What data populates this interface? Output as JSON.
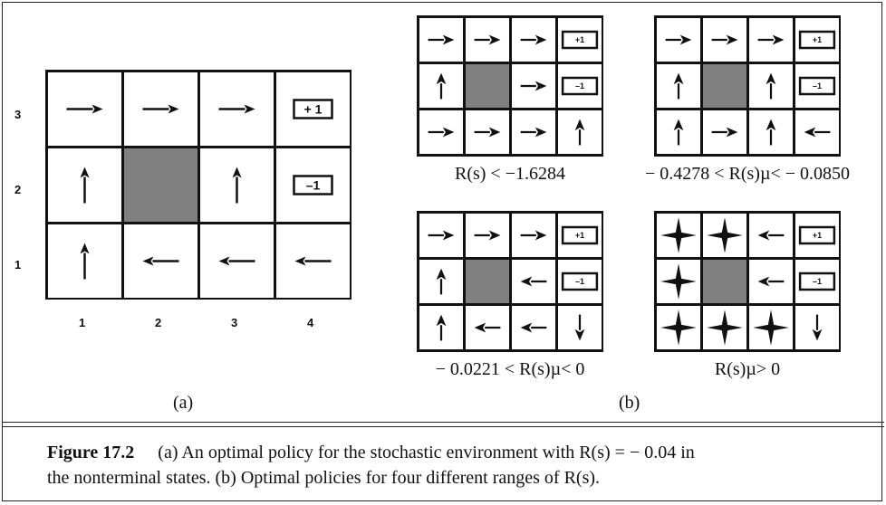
{
  "figure_a": {
    "row_labels": [
      "3",
      "2",
      "1"
    ],
    "col_labels": [
      "1",
      "2",
      "3",
      "4"
    ],
    "grid": [
      [
        "right",
        "right",
        "right",
        "+1"
      ],
      [
        "up",
        "wall",
        "up",
        "-1"
      ],
      [
        "up",
        "left",
        "left",
        "left"
      ]
    ],
    "sublabel": "(a)"
  },
  "figure_b": {
    "sublabel": "(b)",
    "panels": [
      {
        "range_label": "R(s) < −1.6284",
        "grid": [
          [
            "right",
            "right",
            "right",
            "+1"
          ],
          [
            "up",
            "wall",
            "right",
            "-1"
          ],
          [
            "right",
            "right",
            "right",
            "up"
          ]
        ]
      },
      {
        "range_label": "− 0.4278 < R(s)µ< − 0.0850",
        "grid": [
          [
            "right",
            "right",
            "right",
            "+1"
          ],
          [
            "up",
            "wall",
            "up",
            "-1"
          ],
          [
            "up",
            "right",
            "up",
            "left"
          ]
        ]
      },
      {
        "range_label": "− 0.0221 < R(s)µ< 0",
        "grid": [
          [
            "right",
            "right",
            "right",
            "+1"
          ],
          [
            "up",
            "wall",
            "left",
            "-1"
          ],
          [
            "up",
            "left",
            "left",
            "down"
          ]
        ]
      },
      {
        "range_label": "R(s)µ> 0",
        "grid": [
          [
            "all",
            "all",
            "left",
            "+1"
          ],
          [
            "all",
            "wall",
            "left",
            "-1"
          ],
          [
            "all",
            "all",
            "all",
            "down"
          ]
        ]
      }
    ]
  },
  "terminal_labels": {
    "+1": "+ 1",
    "-1": "–1",
    "+1_small": "+1",
    "-1_small": "–1"
  },
  "caption": {
    "figure_number": "Figure 17.2",
    "line1": "(a) An optimal policy for the stochastic environment with R(s) = − 0.04 in",
    "line2": "the nonterminal states. (b) Optimal policies for four different ranges of R(s)."
  },
  "colors": {
    "wall": "#808080",
    "ink": "#111111"
  }
}
